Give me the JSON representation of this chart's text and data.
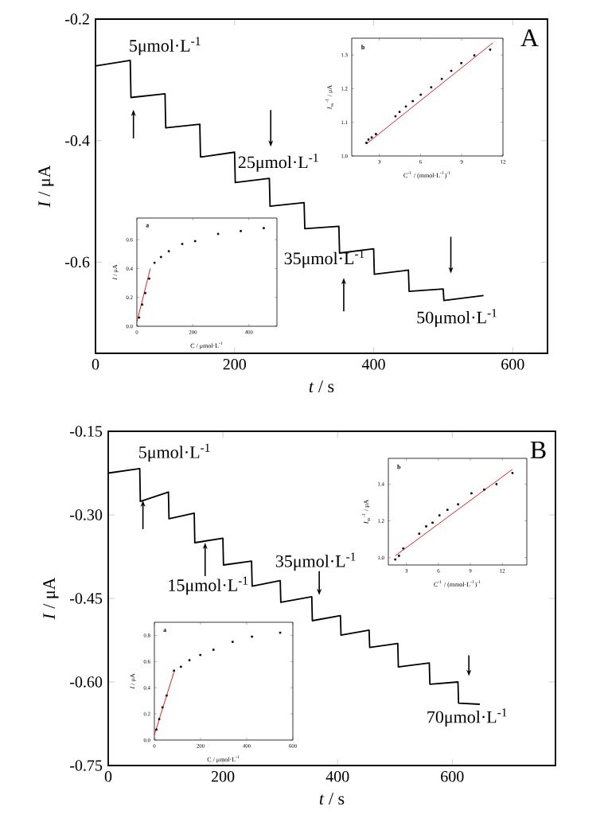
{
  "chart_data": [
    {
      "type": "line",
      "xlabel": "*t* / s",
      "ylabel": "*I* / μA",
      "color": "#000000",
      "xlim": [
        0,
        650
      ],
      "ylim": [
        -0.75,
        -0.2
      ],
      "xticks": [
        0,
        200,
        400,
        600
      ],
      "yticks": [
        -0.2,
        -0.4,
        -0.6
      ],
      "x": [
        0,
        50,
        51,
        100,
        101,
        150,
        151,
        200,
        201,
        250,
        251,
        300,
        301,
        350,
        351,
        400,
        401,
        450,
        451,
        500,
        501,
        558
      ],
      "values": [
        -0.277,
        -0.268,
        -0.329,
        -0.323,
        -0.379,
        -0.373,
        -0.427,
        -0.419,
        -0.469,
        -0.462,
        -0.508,
        -0.502,
        -0.545,
        -0.541,
        -0.585,
        -0.578,
        -0.62,
        -0.613,
        -0.648,
        -0.644,
        -0.663,
        -0.655
      ],
      "annotations": [
        {
          "text": "5μmol·L$^{-1}$",
          "x": 50,
          "y": -0.268
        },
        {
          "text": "25μmol·L$^{-1}$",
          "x": 252,
          "y": -0.41
        },
        {
          "text": "35μmol·L$^{-1}$",
          "x": 357,
          "y": -0.626
        },
        {
          "text": "50μmol·L$^{-1}$",
          "x": 511,
          "y": -0.663
        },
        "A"
      ]
    },
    {
      "type": "scatter",
      "title": "b",
      "xlabel": "C$^{-1}$ / (mmol·L$^{-1}$)$^{-1}$",
      "ylabel": "*I*$_{ss}$$^{-1}$ / μA",
      "xlim": [
        1,
        12
      ],
      "ylim": [
        1.0,
        1.35
      ],
      "xticks": [
        3,
        6,
        9,
        12
      ],
      "yticks": [
        {
          "value": 1.0,
          "label": "1.0"
        },
        1.1,
        1.2,
        1.3
      ],
      "series": [
        {
          "type": "scatter",
          "marker": "square",
          "color": "#000000",
          "x": [
            2.07,
            2.22,
            2.45,
            2.76,
            4.18,
            4.48,
            4.94,
            5.44,
            6.02,
            6.78,
            7.55,
            8.24,
            8.97,
            9.92,
            11.07
          ],
          "values": [
            1.039,
            1.049,
            1.055,
            1.065,
            1.118,
            1.131,
            1.147,
            1.163,
            1.182,
            1.204,
            1.229,
            1.253,
            1.276,
            1.299,
            1.316
          ]
        },
        {
          "type": "line",
          "color": "#e0201b",
          "x": [
            2.07,
            11.26
          ],
          "values": [
            1.036,
            1.336
          ]
        }
      ]
    },
    {
      "type": "scatter",
      "title": "a",
      "xlabel": "C / μmol·L$^{-1}$",
      "ylabel": "*I* / μA",
      "xlim": [
        0,
        500
      ],
      "ylim": [
        0,
        0.75
      ],
      "xticks": [
        0,
        200,
        400
      ],
      "yticks": [
        {
          "value": 0,
          "label": "0.0"
        },
        0.2,
        0.4,
        0.6
      ],
      "series": [
        {
          "type": "scatter",
          "marker": "square",
          "color": "#000000",
          "x": [
            8,
            19,
            30,
            44,
            63,
            86,
            114,
            162,
            208,
            290,
            371,
            453
          ],
          "values": [
            0.06,
            0.15,
            0.23,
            0.33,
            0.44,
            0.48,
            0.52,
            0.57,
            0.59,
            0.64,
            0.66,
            0.68
          ]
        },
        {
          "type": "line",
          "color": "#e0201b",
          "x": [
            0,
            48
          ],
          "values": [
            0.03,
            0.4
          ]
        }
      ]
    },
    {
      "type": "line",
      "xlabel": "*t* / s",
      "ylabel": "*I* / μA",
      "color": "#000000",
      "xlim": [
        0,
        780
      ],
      "ylim": [
        -0.75,
        -0.15
      ],
      "xticks": [
        0,
        200,
        400,
        600
      ],
      "yticks": [
        {
          "value": -0.15,
          "label": "-0.15"
        },
        {
          "value": -0.3,
          "label": "-0.30"
        },
        {
          "value": -0.45,
          "label": "-0.45"
        },
        {
          "value": -0.6,
          "label": "-0.60"
        },
        {
          "value": -0.75,
          "label": "-0.75"
        }
      ],
      "x": [
        0,
        55,
        56,
        105,
        106,
        150,
        151,
        200,
        201,
        250,
        251,
        300,
        301,
        355,
        356,
        405,
        406,
        455,
        456,
        505,
        506,
        560,
        561,
        610,
        611,
        648
      ],
      "values": [
        -0.225,
        -0.217,
        -0.276,
        -0.259,
        -0.307,
        -0.297,
        -0.35,
        -0.342,
        -0.39,
        -0.383,
        -0.428,
        -0.418,
        -0.457,
        -0.447,
        -0.49,
        -0.481,
        -0.516,
        -0.507,
        -0.538,
        -0.531,
        -0.573,
        -0.566,
        -0.604,
        -0.6,
        -0.638,
        -0.64
      ],
      "annotations": [
        {
          "text": "5μmol·L$^{-1}$",
          "x": 55,
          "y": -0.217
        },
        {
          "text": "15μmol·L$^{-1}$",
          "x": 169,
          "y": -0.35
        },
        {
          "text": "35μmol·L$^{-1}$",
          "x": 368,
          "y": -0.444
        },
        {
          "text": "70μmol·L$^{-1}$",
          "x": 629,
          "y": -0.638
        },
        "B"
      ]
    },
    {
      "type": "scatter",
      "title": "b",
      "xlabel": "C$^{-1}$ / (mmol·L$^{-1}$)$^{-1}$",
      "ylabel": "*I*$_{ss}$$^{-1}$ / μA",
      "xlim": [
        1.3,
        14.3
      ],
      "ylim": [
        0.96,
        1.54
      ],
      "xticks": [
        3,
        6,
        9,
        12
      ],
      "yticks": [
        {
          "value": 1.0,
          "label": "1.0"
        },
        1.2,
        1.4
      ],
      "series": [
        {
          "type": "scatter",
          "marker": "square",
          "color": "#000000",
          "x": [
            1.95,
            2.3,
            2.7,
            4.2,
            4.85,
            5.45,
            6.1,
            6.85,
            7.85,
            9.1,
            10.3,
            11.45,
            12.95
          ],
          "values": [
            0.99,
            1.01,
            1.05,
            1.13,
            1.17,
            1.19,
            1.23,
            1.26,
            1.29,
            1.35,
            1.37,
            1.4,
            1.46
          ]
        },
        {
          "type": "line",
          "color": "#e0201b",
          "x": [
            1.95,
            12.95
          ],
          "values": [
            1.01,
            1.48
          ]
        }
      ]
    },
    {
      "type": "scatter",
      "title": "a",
      "xlabel": "C / μmol·L$^{-1}$",
      "ylabel": "*I* / μA",
      "xlim": [
        0,
        600
      ],
      "ylim": [
        0,
        0.9
      ],
      "xticks": [
        0,
        200,
        400,
        600
      ],
      "yticks": [
        {
          "value": 0,
          "label": "0.0"
        },
        0.2,
        0.4,
        0.6,
        0.8
      ],
      "series": [
        {
          "type": "scatter",
          "marker": "square",
          "color": "#000000",
          "x": [
            9,
            21,
            35,
            53,
            85,
            115,
            152,
            199,
            256,
            339,
            423,
            545
          ],
          "values": [
            0.08,
            0.16,
            0.25,
            0.34,
            0.53,
            0.56,
            0.61,
            0.65,
            0.69,
            0.75,
            0.79,
            0.82
          ]
        },
        {
          "type": "line",
          "color": "#e0201b",
          "x": [
            0,
            85
          ],
          "values": [
            0.04,
            0.52
          ]
        }
      ]
    }
  ]
}
